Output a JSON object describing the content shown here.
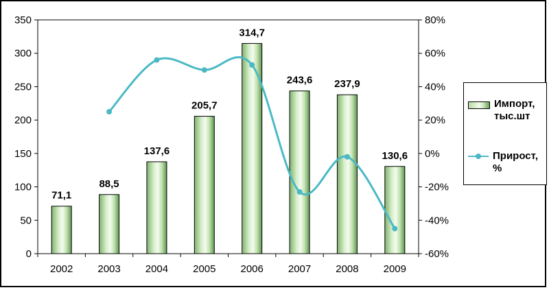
{
  "chart_data": {
    "type": "bar",
    "categories": [
      "2002",
      "2003",
      "2004",
      "2005",
      "2006",
      "2007",
      "2008",
      "2009"
    ],
    "series": [
      {
        "name": "Импорт, тыс.шт",
        "type": "bar",
        "axis": "left",
        "values": [
          71.1,
          88.5,
          137.6,
          205.7,
          314.7,
          243.6,
          237.9,
          130.6
        ],
        "labels": [
          "71,1",
          "88,5",
          "137,6",
          "205,7",
          "314,7",
          "243,6",
          "237,9",
          "130,6"
        ]
      },
      {
        "name": "Прирост, %",
        "type": "line",
        "axis": "right",
        "values": [
          null,
          25,
          56,
          50,
          53,
          -23,
          -2,
          -45
        ]
      }
    ],
    "yaxis_left": {
      "min": 0,
      "max": 350,
      "step": 50,
      "ticks": [
        "0",
        "50",
        "100",
        "150",
        "200",
        "250",
        "300",
        "350"
      ]
    },
    "yaxis_right": {
      "min": -60,
      "max": 80,
      "step": 20,
      "ticks": [
        "-60%",
        "-40%",
        "-20%",
        "0%",
        "20%",
        "40%",
        "60%",
        "80%"
      ]
    },
    "grid": false,
    "legend_position": "right",
    "colors": {
      "bar_dark": "#6a9f5a",
      "bar_light": "#f2fbe9",
      "bar_border": "#000000",
      "line": "#4ab9c4"
    }
  },
  "legend": {
    "items": [
      {
        "icon": "bar-swatch",
        "label": "Импорт, тыс.шт"
      },
      {
        "icon": "line-swatch",
        "label": "Прирост, %"
      }
    ]
  }
}
